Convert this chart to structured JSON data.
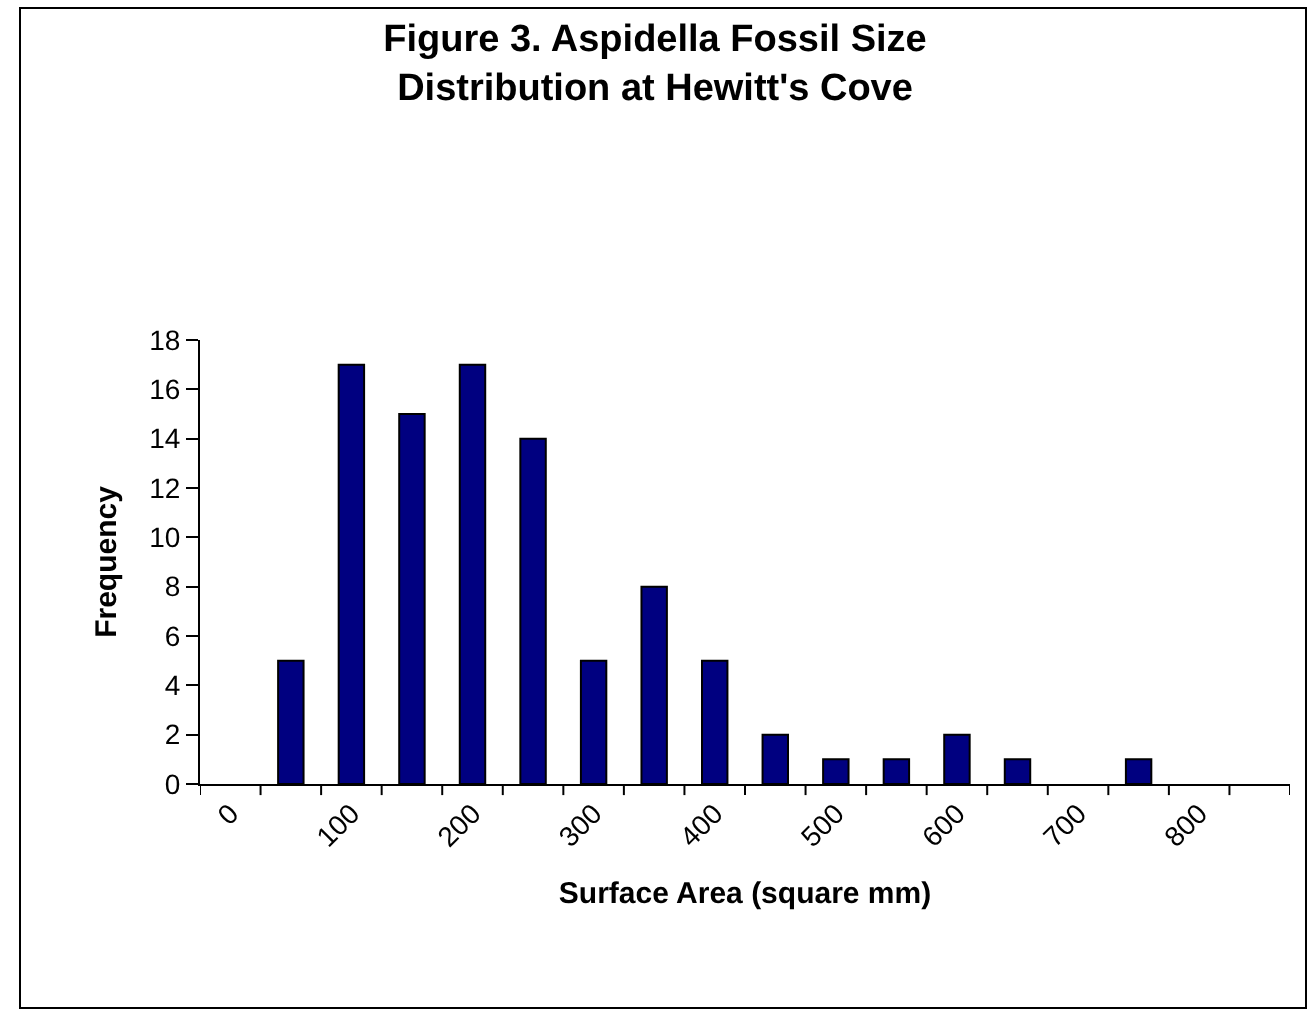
{
  "chart_data": {
    "type": "bar",
    "title": "Figure 3. Aspidella Fossil Size Distribution at Hewitt's Cove",
    "xlabel": "Surface Area (square mm)",
    "ylabel": "Frequency",
    "categories": [
      "0",
      null,
      "100",
      null,
      "200",
      null,
      "300",
      null,
      "400",
      null,
      "500",
      null,
      "600",
      null,
      "700",
      null,
      "800",
      null
    ],
    "values": [
      null,
      5,
      17,
      15,
      17,
      14,
      5,
      8,
      5,
      2,
      1,
      1,
      2,
      1,
      null,
      1,
      null,
      null
    ],
    "color": "#000080",
    "ylim": [
      0,
      18
    ],
    "yticks": [
      0,
      2,
      4,
      6,
      8,
      10,
      12,
      14,
      16,
      18
    ]
  }
}
